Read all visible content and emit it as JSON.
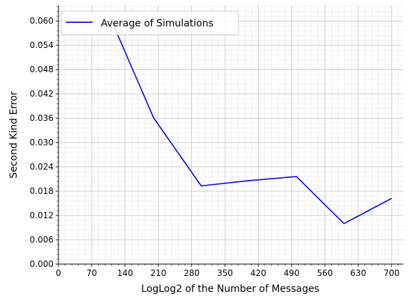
{
  "chart_data": {
    "type": "line",
    "title": "",
    "xlabel": "LogLog2 of the Number of Messages",
    "ylabel": "Second Kind Error",
    "xlim": [
      0,
      725
    ],
    "ylim": [
      0,
      0.0638
    ],
    "xticks": [
      0,
      70,
      140,
      210,
      280,
      350,
      420,
      490,
      560,
      630,
      700
    ],
    "xtick_labels": [
      "0",
      "70",
      "140",
      "210",
      "280",
      "350",
      "420",
      "490",
      "560",
      "630",
      "700"
    ],
    "yticks": [
      0.0,
      0.006,
      0.012,
      0.018,
      0.024,
      0.03,
      0.036,
      0.042,
      0.048,
      0.054,
      0.06
    ],
    "ytick_labels": [
      "0.000",
      "0.006",
      "0.012",
      "0.018",
      "0.024",
      "0.030",
      "0.036",
      "0.042",
      "0.048",
      "0.054",
      "0.060"
    ],
    "grid": true,
    "minor_grid": true,
    "legend_position": "top-left",
    "series": [
      {
        "name": "Average of Simulations",
        "color": "#0000ff",
        "x": [
          110,
          200,
          300,
          400,
          500,
          600,
          700
        ],
        "y": [
          0.0605,
          0.0361,
          0.0193,
          0.0206,
          0.0216,
          0.01,
          0.0162
        ]
      }
    ]
  }
}
